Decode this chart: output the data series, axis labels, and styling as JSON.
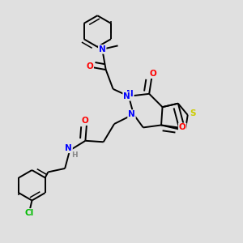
{
  "background_color": "#e0e0e0",
  "atom_colors": {
    "N": "#0000ff",
    "O": "#ff0000",
    "S": "#cccc00",
    "Cl": "#00bb00",
    "C": "#000000",
    "H": "#888888"
  },
  "bond_color": "#000000",
  "bond_width": 1.4
}
